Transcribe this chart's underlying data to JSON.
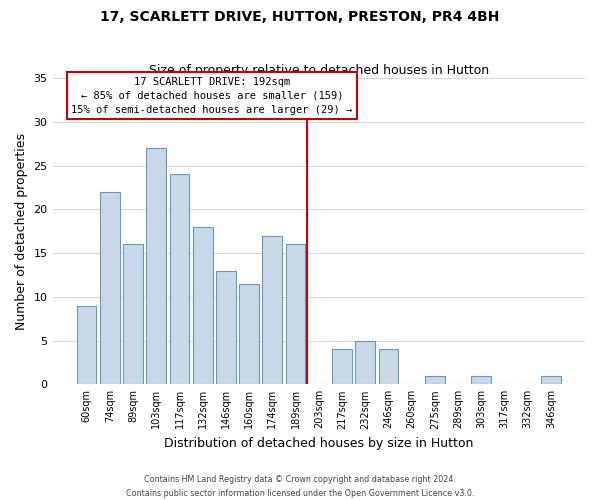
{
  "title": "17, SCARLETT DRIVE, HUTTON, PRESTON, PR4 4BH",
  "subtitle": "Size of property relative to detached houses in Hutton",
  "xlabel": "Distribution of detached houses by size in Hutton",
  "ylabel": "Number of detached properties",
  "bar_labels": [
    "60sqm",
    "74sqm",
    "89sqm",
    "103sqm",
    "117sqm",
    "132sqm",
    "146sqm",
    "160sqm",
    "174sqm",
    "189sqm",
    "203sqm",
    "217sqm",
    "232sqm",
    "246sqm",
    "260sqm",
    "275sqm",
    "289sqm",
    "303sqm",
    "317sqm",
    "332sqm",
    "346sqm"
  ],
  "bar_values": [
    9,
    22,
    16,
    27,
    24,
    18,
    13,
    11.5,
    17,
    16,
    0,
    4,
    5,
    4,
    0,
    1,
    0,
    1,
    0,
    0,
    1
  ],
  "bar_color": "#c8d8e8",
  "bar_edge_color": "#6699bb",
  "property_line_x": 9.5,
  "property_label": "17 SCARLETT DRIVE: 192sqm",
  "annotation_line1": "← 85% of detached houses are smaller (159)",
  "annotation_line2": "15% of semi-detached houses are larger (29) →",
  "annotation_box_color": "#ffffff",
  "annotation_box_edge": "#cc0000",
  "property_line_color": "#cc0000",
  "ylim": [
    0,
    35
  ],
  "yticks": [
    0,
    5,
    10,
    15,
    20,
    25,
    30,
    35
  ],
  "footer1": "Contains HM Land Registry data © Crown copyright and database right 2024.",
  "footer2": "Contains public sector information licensed under the Open Government Licence v3.0.",
  "background_color": "#ffffff",
  "grid_color": "#c8d4dc"
}
